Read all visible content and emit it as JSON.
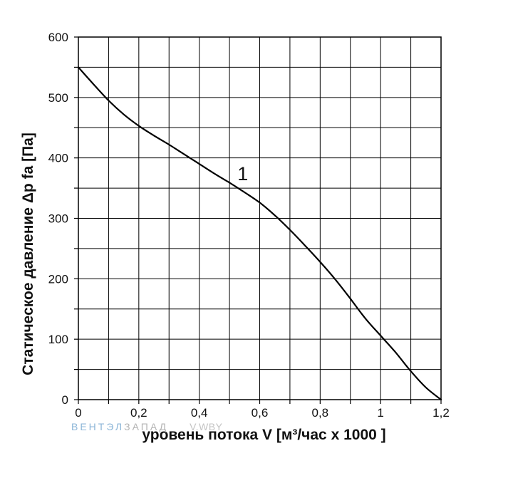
{
  "watermark": {
    "part1": "ВЕНТЭЛ",
    "part2": "ЗАПАД",
    "site": "V.WBY"
  },
  "chart_data": {
    "type": "line",
    "title": "",
    "xlabel": "уровень потока  V [м³/час x 1000 ]",
    "ylabel": "Статическое давление  Δp fa [Па]",
    "xlim": [
      0,
      1.2
    ],
    "ylim": [
      0,
      600
    ],
    "x_ticks": [
      0,
      0.1,
      0.2,
      0.3,
      0.4,
      0.5,
      0.6,
      0.7,
      0.8,
      0.9,
      1.0,
      1.1,
      1.2
    ],
    "x_tick_labels": [
      "0",
      "",
      "0,2",
      "",
      "0,4",
      "",
      "0,6",
      "",
      "0,8",
      "",
      "1",
      "",
      "1,2"
    ],
    "y_ticks": [
      0,
      50,
      100,
      150,
      200,
      250,
      300,
      350,
      400,
      450,
      500,
      550,
      600
    ],
    "y_tick_labels": [
      "0",
      "",
      "100",
      "",
      "200",
      "",
      "300",
      "",
      "400",
      "",
      "500",
      "",
      "600"
    ],
    "grid": true,
    "series": [
      {
        "name": "1",
        "color": "#000000",
        "x": [
          0,
          0.05,
          0.1,
          0.15,
          0.2,
          0.25,
          0.3,
          0.35,
          0.4,
          0.45,
          0.5,
          0.55,
          0.6,
          0.65,
          0.7,
          0.75,
          0.8,
          0.85,
          0.9,
          0.95,
          1.0,
          1.05,
          1.1,
          1.15,
          1.2
        ],
        "y": [
          550,
          522,
          495,
          472,
          453,
          437,
          422,
          406,
          390,
          374,
          359,
          343,
          326,
          305,
          281,
          255,
          228,
          199,
          167,
          134,
          106,
          78,
          47,
          20,
          0
        ]
      }
    ],
    "annotations": [
      {
        "text": "1",
        "x": 0.55,
        "y": 375
      }
    ]
  }
}
